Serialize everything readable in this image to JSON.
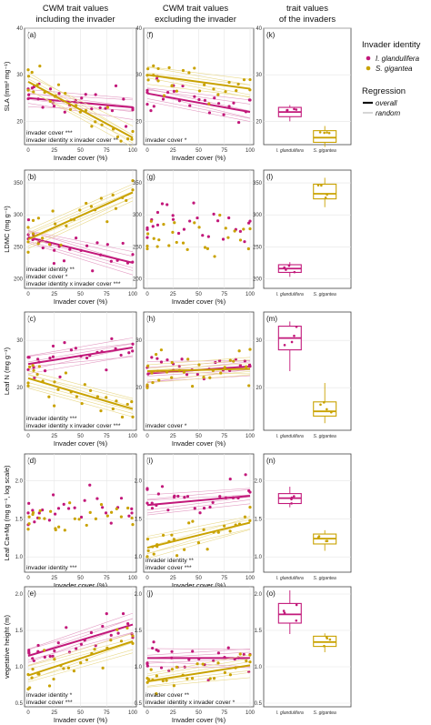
{
  "colors": {
    "glandulifera": "#c2187a",
    "gigantea": "#c9a200",
    "glandulifera_light": "#e39cc3",
    "gigantea_light": "#e9d98a"
  },
  "column_titles": [
    [
      "CWM trait values",
      "including the invader"
    ],
    [
      "CWM trait values",
      "excluding the invader"
    ],
    [
      "trait values",
      "of the invaders"
    ]
  ],
  "legend": {
    "invader_title": "Invader identity",
    "invader_items": [
      "I. glandulifera",
      "S. gigantea"
    ],
    "regression_title": "Regression",
    "regression_items": [
      "overall",
      "random"
    ]
  },
  "chart_data": [
    {
      "type": "scatter",
      "panel": "(a)",
      "xlabel": "Invader cover (%)",
      "ylabel": "SLA (mm² mg⁻¹)",
      "xlim": [
        0,
        100
      ],
      "ylim": [
        15,
        40
      ],
      "xticks": [
        "0",
        "25",
        "50",
        "75",
        "100"
      ],
      "yticks": [
        "20",
        "30",
        "40"
      ],
      "ytick_values": [
        20,
        30,
        40
      ],
      "fit": {
        "glandulifera": [
          [
            0,
            25
          ],
          [
            100,
            23
          ]
        ],
        "gigantea": [
          [
            0,
            28.5
          ],
          [
            100,
            16.5
          ]
        ]
      },
      "annotations": [
        "invader cover ***",
        "invader identity x invader cover **"
      ]
    },
    {
      "type": "scatter",
      "panel": "(f)",
      "xlabel": "Invader cover (%)",
      "ylabel": "",
      "xlim": [
        0,
        100
      ],
      "ylim": [
        15,
        40
      ],
      "xticks": [
        "0",
        "25",
        "50",
        "75",
        "100"
      ],
      "yticks": [
        "20",
        "30",
        "40"
      ],
      "ytick_values": [
        20,
        30,
        40
      ],
      "fit": {
        "glandulifera": [
          [
            0,
            26
          ],
          [
            100,
            22
          ]
        ],
        "gigantea": [
          [
            0,
            30
          ],
          [
            100,
            27
          ]
        ]
      },
      "annotations": [
        "invader cover *"
      ]
    },
    {
      "type": "box",
      "panel": "(k)",
      "ylim": [
        15,
        40
      ],
      "yticks": [
        "20",
        "30",
        "40"
      ],
      "ytick_values": [
        20,
        30,
        40
      ],
      "categories": [
        "I. glandulifera",
        "S. gigantea"
      ],
      "boxes": [
        {
          "q1": 21,
          "median": 22,
          "q3": 23,
          "min": 20,
          "max": 23.5
        },
        {
          "q1": 15.5,
          "median": 16.5,
          "q3": 18,
          "min": 14.5,
          "max": 19
        }
      ]
    },
    {
      "type": "scatter",
      "panel": "(b)",
      "xlabel": "Invader cover (%)",
      "ylabel": "LDMC (mg g⁻¹)",
      "xlim": [
        0,
        100
      ],
      "ylim": [
        185,
        370
      ],
      "xticks": [
        "0",
        "25",
        "50",
        "75",
        "100"
      ],
      "yticks": [
        "200",
        "250",
        "300",
        "350"
      ],
      "ytick_values": [
        200,
        250,
        300,
        350
      ],
      "fit": {
        "glandulifera": [
          [
            0,
            265
          ],
          [
            100,
            225
          ]
        ],
        "gigantea": [
          [
            0,
            262
          ],
          [
            100,
            335
          ]
        ]
      },
      "annotations": [
        "invader identity **",
        "invader cover *",
        "invader identity x invader cover ***"
      ]
    },
    {
      "type": "scatter",
      "panel": "(g)",
      "xlabel": "Invader cover (%)",
      "ylabel": "",
      "xlim": [
        0,
        100
      ],
      "ylim": [
        185,
        370
      ],
      "xticks": [
        "0",
        "25",
        "50",
        "75",
        "100"
      ],
      "yticks": [
        "200",
        "250",
        "300",
        "350"
      ],
      "ytick_values": [
        200,
        250,
        300,
        350
      ],
      "fit": null,
      "annotations": []
    },
    {
      "type": "box",
      "panel": "(l)",
      "ylim": [
        185,
        370
      ],
      "yticks": [
        "200",
        "250",
        "300",
        "350"
      ],
      "ytick_values": [
        200,
        250,
        300,
        350
      ],
      "categories": [
        "I. glandulifera",
        "S. gigantea"
      ],
      "boxes": [
        {
          "q1": 210,
          "median": 216,
          "q3": 222,
          "min": 203,
          "max": 226
        },
        {
          "q1": 325,
          "median": 333,
          "q3": 348,
          "min": 312,
          "max": 358
        }
      ]
    },
    {
      "type": "scatter",
      "panel": "(c)",
      "xlabel": "Invader cover (%)",
      "ylabel": "Leaf N (mg g⁻¹)",
      "xlim": [
        0,
        100
      ],
      "ylim": [
        11,
        36
      ],
      "xticks": [
        "0",
        "25",
        "50",
        "75",
        "100"
      ],
      "yticks": [
        "20",
        "30"
      ],
      "ytick_values": [
        20,
        30
      ],
      "fit": {
        "glandulifera": [
          [
            0,
            25
          ],
          [
            100,
            28.5
          ]
        ],
        "gigantea": [
          [
            0,
            22
          ],
          [
            100,
            15.5
          ]
        ]
      },
      "annotations": [
        "invader identity ***",
        "invader identity x invader cover ***"
      ]
    },
    {
      "type": "scatter",
      "panel": "(h)",
      "xlabel": "Invader cover (%)",
      "ylabel": "",
      "xlim": [
        0,
        100
      ],
      "ylim": [
        11,
        36
      ],
      "xticks": [
        "0",
        "25",
        "50",
        "75",
        "100"
      ],
      "yticks": [
        "20",
        "30"
      ],
      "ytick_values": [
        20,
        30
      ],
      "fit": {
        "glandulifera": [
          [
            0,
            23
          ],
          [
            100,
            24.5
          ]
        ],
        "gigantea": [
          [
            0,
            23.5
          ],
          [
            100,
            24
          ]
        ]
      },
      "annotations": [
        "invader cover *"
      ]
    },
    {
      "type": "box",
      "panel": "(m)",
      "ylim": [
        11,
        36
      ],
      "yticks": [
        "20",
        "30"
      ],
      "ytick_values": [
        20,
        30
      ],
      "categories": [
        "I. glandulifera",
        "S. gigantea"
      ],
      "boxes": [
        {
          "q1": 28,
          "median": 30.5,
          "q3": 33,
          "min": 23.5,
          "max": 34
        },
        {
          "q1": 14,
          "median": 15,
          "q3": 17,
          "min": 12.5,
          "max": 21
        }
      ]
    },
    {
      "type": "scatter",
      "panel": "(d)",
      "xlabel": "Invader cover (%)",
      "ylabel": "Leaf Ca+Mg (mg g⁻¹, log scale)",
      "xlim": [
        0,
        100
      ],
      "ylim": [
        0.8,
        2.35
      ],
      "xticks": [
        "0",
        "25",
        "50",
        "75",
        "100"
      ],
      "yticks": [
        "1.0",
        "1.5",
        "2.0"
      ],
      "ytick_values": [
        1.0,
        1.5,
        2.0
      ],
      "fit": null,
      "annotations": [
        "invader identity ***"
      ]
    },
    {
      "type": "scatter",
      "panel": "(i)",
      "xlabel": "Invader cover (%)",
      "ylabel": "",
      "xlim": [
        0,
        100
      ],
      "ylim": [
        0.8,
        2.35
      ],
      "xticks": [
        "0",
        "25",
        "50",
        "75",
        "100"
      ],
      "yticks": [
        "1.0",
        "1.5",
        "2.0"
      ],
      "ytick_values": [
        1.0,
        1.5,
        2.0
      ],
      "fit": {
        "glandulifera": [
          [
            0,
            1.68
          ],
          [
            100,
            1.8
          ]
        ],
        "gigantea": [
          [
            0,
            1.12
          ],
          [
            100,
            1.45
          ]
        ]
      },
      "annotations": [
        "invader identity **",
        "invader cover ***"
      ]
    },
    {
      "type": "box",
      "panel": "(n)",
      "ylim": [
        0.8,
        2.35
      ],
      "yticks": [
        "1.0",
        "1.5",
        "2.0"
      ],
      "ytick_values": [
        1.0,
        1.5,
        2.0
      ],
      "categories": [
        "I. glandulifera",
        "S. gigantea"
      ],
      "boxes": [
        {
          "q1": 1.7,
          "median": 1.77,
          "q3": 1.83,
          "min": 1.65,
          "max": 1.92
        },
        {
          "q1": 1.17,
          "median": 1.24,
          "q3": 1.3,
          "min": 1.08,
          "max": 1.35
        }
      ]
    },
    {
      "type": "scatter",
      "panel": "(e)",
      "xlabel": "Invader cover (%)",
      "ylabel": "vegetative height (m)",
      "xlim": [
        0,
        100
      ],
      "ylim": [
        0.45,
        2.1
      ],
      "xticks": [
        "0",
        "25",
        "50",
        "75",
        "100"
      ],
      "yticks": [
        "0.5",
        "1.0",
        "1.5",
        "2.0"
      ],
      "ytick_values": [
        0.5,
        1.0,
        1.5,
        2.0
      ],
      "fit": {
        "glandulifera": [
          [
            0,
            1.15
          ],
          [
            100,
            1.58
          ]
        ],
        "gigantea": [
          [
            0,
            0.88
          ],
          [
            100,
            1.35
          ]
        ]
      },
      "annotations": [
        "invader identity *",
        "invader cover ***"
      ]
    },
    {
      "type": "scatter",
      "panel": "(j)",
      "xlabel": "Invader cover (%)",
      "ylabel": "",
      "xlim": [
        0,
        100
      ],
      "ylim": [
        0.45,
        2.1
      ],
      "xticks": [
        "0",
        "25",
        "50",
        "75",
        "100"
      ],
      "yticks": [
        "0.5",
        "1.0",
        "1.5",
        "2.0"
      ],
      "ytick_values": [
        0.5,
        1.0,
        1.5,
        2.0
      ],
      "fit": {
        "glandulifera": [
          [
            0,
            1.12
          ],
          [
            100,
            1.12
          ]
        ],
        "gigantea": [
          [
            0,
            0.8
          ],
          [
            100,
            1.02
          ]
        ]
      },
      "annotations": [
        "invader cover **",
        "invader identity x invader cover *"
      ]
    },
    {
      "type": "box",
      "panel": "(o)",
      "ylim": [
        0.45,
        2.1
      ],
      "yticks": [
        "0.5",
        "1.0",
        "1.5",
        "2.0"
      ],
      "ytick_values": [
        0.5,
        1.0,
        1.5,
        2.0
      ],
      "categories": [
        "I. glandulifera",
        "S. gigantea"
      ],
      "boxes": [
        {
          "q1": 1.6,
          "median": 1.72,
          "q3": 1.87,
          "min": 1.45,
          "max": 2.05
        },
        {
          "q1": 1.28,
          "median": 1.34,
          "q3": 1.42,
          "min": 1.2,
          "max": 1.46
        }
      ]
    }
  ]
}
